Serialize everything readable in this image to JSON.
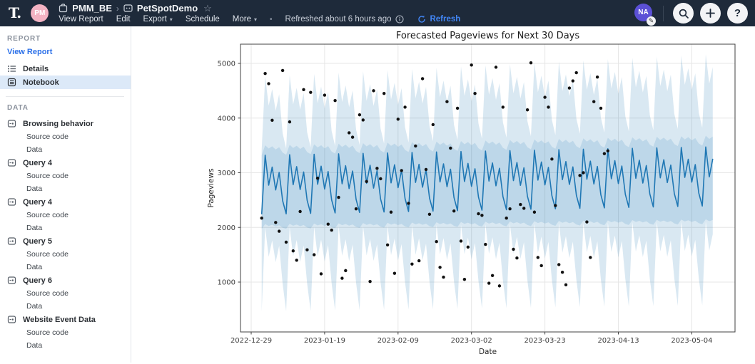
{
  "topbar": {
    "logo_text": "T.",
    "workspace_avatar": {
      "initials": "PM",
      "bg": "#f3b3c3"
    },
    "breadcrumb": {
      "workspace": "PMM_BE",
      "separator": "›",
      "report": "PetSpotDemo",
      "star": "☆"
    },
    "menu_items": [
      {
        "label": "View Report",
        "caret": false
      },
      {
        "label": "Edit",
        "caret": false
      },
      {
        "label": "Export",
        "caret": true
      },
      {
        "label": "Schedule",
        "caret": false
      },
      {
        "label": "More",
        "caret": true
      }
    ],
    "dot_separator": "•",
    "refreshed_text": "Refreshed about 6 hours ago",
    "refresh_label": "Refresh",
    "accent_blue": "#4286f5",
    "user_avatar": {
      "initials": "NA",
      "bg": "#5b50d6"
    }
  },
  "sidebar": {
    "report_header": "REPORT",
    "view_report_label": "View Report",
    "details_label": "Details",
    "notebook_label": "Notebook",
    "selected_item": "Notebook",
    "data_header": "DATA",
    "data_items": [
      "Browsing behavior",
      "Query 4",
      "Query 4",
      "Query 5",
      "Query 6",
      "Website Event Data"
    ],
    "subitem_labels": [
      "Source code",
      "Data"
    ],
    "link_color": "#2a6fe8",
    "selected_bg": "#dce9f8"
  },
  "chart_data": {
    "type": "line",
    "subtype": "forecast line with uncertainty bands and observed scatter points",
    "title": "Forecasted Pageviews for Next 30 Days",
    "xlabel": "Date",
    "ylabel": "Pageviews",
    "x_ticks": [
      {
        "day": 0,
        "label": "2022-12-29"
      },
      {
        "day": 21,
        "label": "2023-01-19"
      },
      {
        "day": 42,
        "label": "2023-02-09"
      },
      {
        "day": 63,
        "label": "2023-03-02"
      },
      {
        "day": 84,
        "label": "2023-03-23"
      },
      {
        "day": 105,
        "label": "2023-04-13"
      },
      {
        "day": 126,
        "label": "2023-05-04"
      }
    ],
    "y_ticks": [
      1000,
      2000,
      3000,
      4000,
      5000
    ],
    "ylim": [
      90,
      5350
    ],
    "grid": true,
    "legend": "none",
    "line_color": "#1f77b4",
    "band_color": "#1f77b4",
    "band_opacity": 0.17,
    "inner_band_opacity": 0.15,
    "point_color": "#111111",
    "series_model": {
      "comment_series": "daily values day d (d=0 is 2022-12-29): value = base + slope*(d-start_day) + weekly[(d+phase)%7]; history d3-d102, forecast d103-d132",
      "start_day": 3,
      "end_day": 132,
      "forecast_start_day": 103,
      "phase": 3,
      "yhat": {
        "base": 2800,
        "slope": 1.2,
        "weekly": [
          520,
          -30,
          300,
          -120,
          200,
          -320,
          -560
        ]
      },
      "upper": {
        "base": 4080,
        "slope": 3.2,
        "weekly": [
          680,
          140,
          440,
          40,
          340,
          -380,
          -660
        ]
      },
      "lower": {
        "base": 1260,
        "slope": 0.9,
        "weekly": [
          740,
          200,
          500,
          100,
          400,
          -300,
          -800
        ]
      },
      "inner_top": {
        "base": 3440,
        "slope": 1.4,
        "weekly": [
          60,
          0,
          40,
          -20,
          20,
          -80,
          -120
        ]
      },
      "inner_bottom": {
        "base": 2020,
        "slope": 0.7,
        "weekly": [
          40,
          5,
          25,
          -5,
          15,
          -30,
          -50
        ]
      }
    },
    "actual_points": [
      [
        3,
        2170
      ],
      [
        4,
        4815
      ],
      [
        5,
        4630
      ],
      [
        6,
        3960
      ],
      [
        7,
        2090
      ],
      [
        8,
        1930
      ],
      [
        9,
        4870
      ],
      [
        10,
        1730
      ],
      [
        11,
        3930
      ],
      [
        12,
        1570
      ],
      [
        13,
        1400
      ],
      [
        14,
        2290
      ],
      [
        15,
        4520
      ],
      [
        16,
        1590
      ],
      [
        17,
        4470
      ],
      [
        18,
        1500
      ],
      [
        19,
        2900
      ],
      [
        20,
        1150
      ],
      [
        21,
        4420
      ],
      [
        22,
        2060
      ],
      [
        23,
        1950
      ],
      [
        24,
        4320
      ],
      [
        25,
        2550
      ],
      [
        26,
        1070
      ],
      [
        27,
        1210
      ],
      [
        28,
        3730
      ],
      [
        29,
        3650
      ],
      [
        30,
        2340
      ],
      [
        31,
        4060
      ],
      [
        32,
        3965
      ],
      [
        33,
        2840
      ],
      [
        34,
        1010
      ],
      [
        35,
        4500
      ],
      [
        36,
        3080
      ],
      [
        37,
        2890
      ],
      [
        38,
        4450
      ],
      [
        39,
        1680
      ],
      [
        40,
        2280
      ],
      [
        41,
        1160
      ],
      [
        42,
        3980
      ],
      [
        43,
        3040
      ],
      [
        44,
        4200
      ],
      [
        45,
        2440
      ],
      [
        46,
        1330
      ],
      [
        47,
        3490
      ],
      [
        48,
        1390
      ],
      [
        49,
        4720
      ],
      [
        50,
        3060
      ],
      [
        51,
        2240
      ],
      [
        52,
        3880
      ],
      [
        53,
        1740
      ],
      [
        54,
        1270
      ],
      [
        55,
        1090
      ],
      [
        56,
        4300
      ],
      [
        57,
        3450
      ],
      [
        58,
        2300
      ],
      [
        59,
        4180
      ],
      [
        60,
        1750
      ],
      [
        61,
        1050
      ],
      [
        62,
        1640
      ],
      [
        63,
        4970
      ],
      [
        64,
        4450
      ],
      [
        65,
        2250
      ],
      [
        66,
        2220
      ],
      [
        67,
        1690
      ],
      [
        68,
        980
      ],
      [
        69,
        1120
      ],
      [
        70,
        4930
      ],
      [
        71,
        930
      ],
      [
        72,
        4200
      ],
      [
        73,
        2170
      ],
      [
        74,
        2340
      ],
      [
        75,
        1600
      ],
      [
        76,
        1440
      ],
      [
        77,
        2420
      ],
      [
        78,
        2350
      ],
      [
        79,
        4150
      ],
      [
        80,
        5010
      ],
      [
        81,
        2280
      ],
      [
        82,
        1450
      ],
      [
        83,
        1300
      ],
      [
        84,
        4380
      ],
      [
        85,
        4200
      ],
      [
        86,
        3250
      ],
      [
        87,
        2400
      ],
      [
        88,
        1320
      ],
      [
        89,
        1180
      ],
      [
        90,
        950
      ],
      [
        91,
        4550
      ],
      [
        92,
        4680
      ],
      [
        93,
        4830
      ],
      [
        94,
        2950
      ],
      [
        95,
        3000
      ],
      [
        96,
        2100
      ],
      [
        97,
        1450
      ],
      [
        98,
        4300
      ],
      [
        99,
        4750
      ],
      [
        100,
        4180
      ],
      [
        101,
        3350
      ],
      [
        102,
        3400
      ]
    ]
  }
}
